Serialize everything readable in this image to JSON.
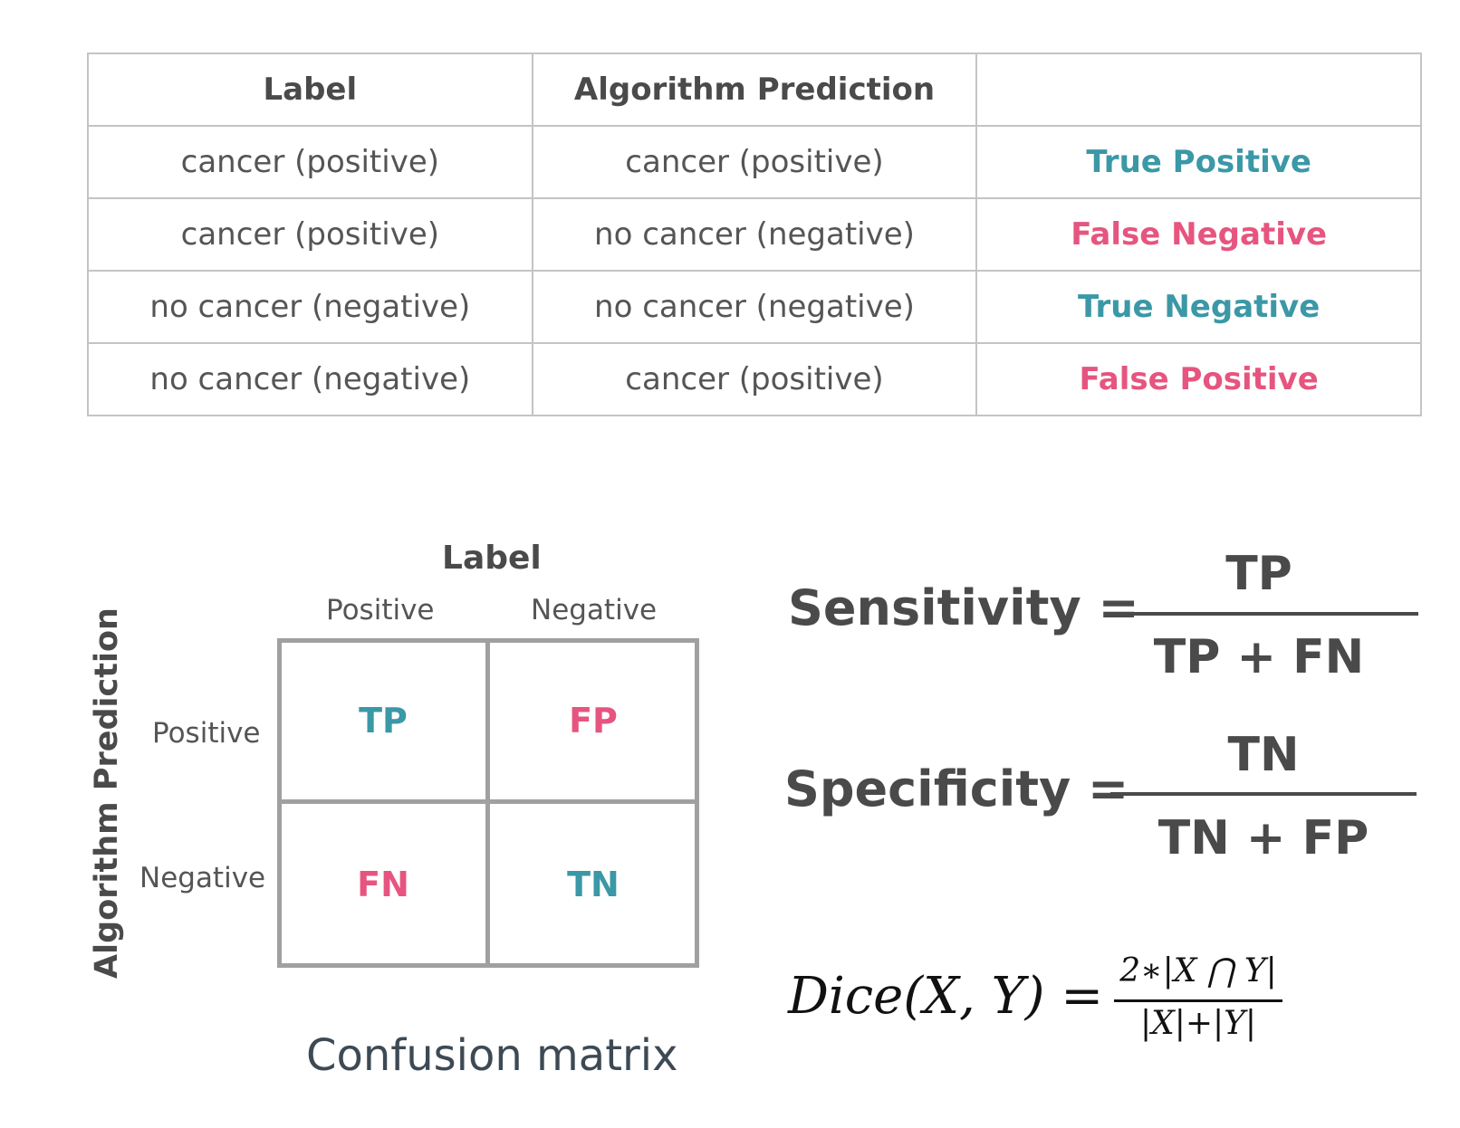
{
  "table": {
    "headers": [
      "Label",
      "Algorithm Prediction",
      ""
    ],
    "rows": [
      {
        "label": "cancer (positive)",
        "prediction": "cancer (positive)",
        "outcome": "True Positive"
      },
      {
        "label": "cancer (positive)",
        "prediction": "no cancer (negative)",
        "outcome": "False Negative"
      },
      {
        "label": "no cancer (negative)",
        "prediction": "no cancer (negative)",
        "outcome": "True Negative"
      },
      {
        "label": "no cancer (negative)",
        "prediction": "cancer (positive)",
        "outcome": "False Positive"
      }
    ]
  },
  "confusion_matrix": {
    "label_title": "Label",
    "col_headers": [
      "Positive",
      "Negative"
    ],
    "row_title": "Algorithm Prediction",
    "row_headers": [
      "Positive",
      "Negative"
    ],
    "cells": [
      [
        "TP",
        "FP"
      ],
      [
        "FN",
        "TN"
      ]
    ],
    "caption": "Confusion matrix"
  },
  "formulas": {
    "sensitivity": {
      "lhs": "Sensitivity =",
      "numerator": "TP",
      "denominator": "TP + FN"
    },
    "specificity": {
      "lhs": "Specificity =",
      "numerator": "TN",
      "denominator": "TN + FP"
    },
    "dice": {
      "lhs": "Dice(X, Y) =",
      "numerator": "2∗|X ⋂ Y|",
      "denominator": "|X|+|Y|"
    }
  },
  "colors": {
    "positive_match": "#3b98a6",
    "mismatch": "#e6557f",
    "text": "#4a4a4a",
    "grid": "#a0a0a0"
  }
}
